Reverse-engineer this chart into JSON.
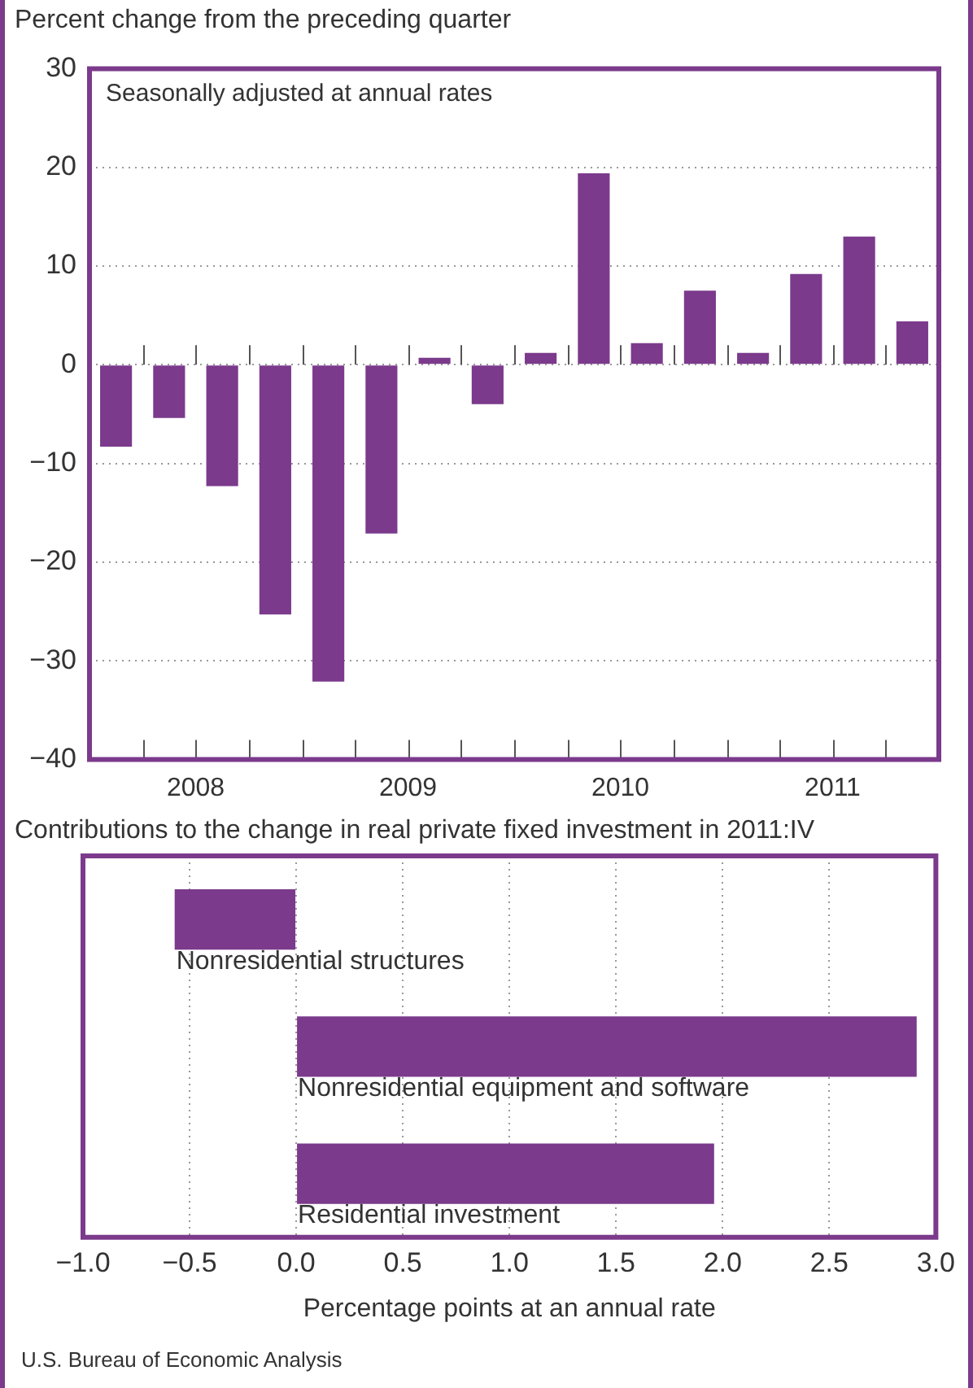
{
  "chart_data": [
    {
      "type": "bar",
      "title": "Percent change from the preceding quarter",
      "annotations": [
        "Seasonally adjusted at annual rates"
      ],
      "x": [
        2008.125,
        2008.375,
        2008.625,
        2008.875,
        2009.125,
        2009.375,
        2009.625,
        2009.875,
        2010.125,
        2010.375,
        2010.625,
        2010.875,
        2011.125,
        2011.375,
        2011.625,
        2011.875
      ],
      "values": [
        -8.3,
        -5.4,
        -12.3,
        -25.3,
        -32.1,
        -17.1,
        0.7,
        -4.0,
        1.2,
        19.4,
        2.2,
        7.5,
        1.2,
        9.2,
        13.0,
        4.4
      ],
      "color": "#7b3a8c",
      "xlim": [
        2008,
        2012
      ],
      "xticks": [
        {
          "value": 2008.25,
          "label": null
        },
        {
          "value": 2008.5,
          "label": "2008"
        },
        {
          "value": 2008.75,
          "label": null
        },
        {
          "value": 2009,
          "label": null
        },
        {
          "value": 2009.25,
          "label": null
        },
        {
          "value": 2009.5,
          "label": "2009"
        },
        {
          "value": 2009.75,
          "label": null
        },
        {
          "value": 2010,
          "label": null
        },
        {
          "value": 2010.25,
          "label": null
        },
        {
          "value": 2010.5,
          "label": "2010"
        },
        {
          "value": 2010.75,
          "label": null
        },
        {
          "value": 2011,
          "label": null
        },
        {
          "value": 2011.25,
          "label": null
        },
        {
          "value": 2011.5,
          "label": "2011"
        },
        {
          "value": 2011.75,
          "label": null
        }
      ],
      "ylim": [
        -40,
        30
      ],
      "yticks": [
        -40,
        -30,
        -20,
        -10,
        0,
        10,
        20,
        30
      ],
      "grid": "y",
      "legend": false
    },
    {
      "type": "bar",
      "orientation": "horizontal",
      "title": "Contributions to the change in real private fixed investment in 2011:IV",
      "categories": [
        "Nonresidential structures",
        "Nonresidential equipment and software",
        "Residential investment"
      ],
      "values": [
        -0.57,
        2.91,
        1.96
      ],
      "color": "#7b3a8c",
      "xlabel": "Percentage points at an annual rate",
      "xlim": [
        -1.0,
        3.0
      ],
      "xticks": [
        {
          "value": -1,
          "label": "−1.0"
        },
        {
          "value": -0.5,
          "label": "−0.5"
        },
        {
          "value": 0,
          "label": "0.0"
        },
        {
          "value": 0.5,
          "label": "0.5"
        },
        {
          "value": 1,
          "label": "1.0"
        },
        {
          "value": 1.5,
          "label": "1.5"
        },
        {
          "value": 2,
          "label": "2.0"
        },
        {
          "value": 2.5,
          "label": "2.5"
        },
        {
          "value": 3,
          "label": "3.0"
        }
      ],
      "grid": "x",
      "tick_labels": "x",
      "legend": false,
      "annotations": [
        "U.S. Bureau of Economic Analysis"
      ]
    }
  ]
}
